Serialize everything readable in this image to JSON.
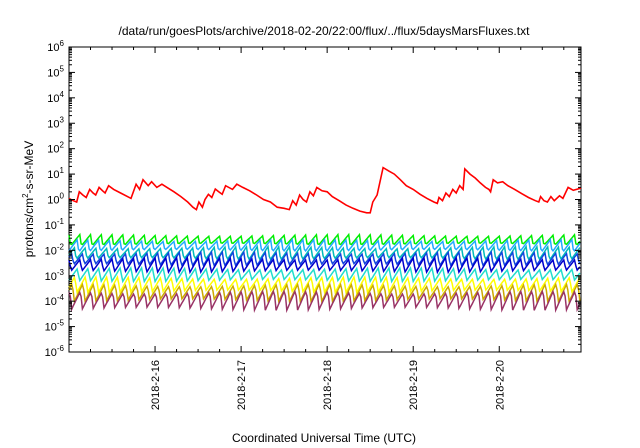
{
  "chart_data": {
    "type": "line",
    "title": "/data/run/goesPlots/archive/2018-02-20/22:00/flux/../flux/5daysMarsFluxes.txt",
    "xlabel": "Coordinated Universal Time (UTC)",
    "ylabel": {
      "prefix": "protons/cm",
      "exponent": "2",
      "suffix": "-s-sr-MeV"
    },
    "y_scale": "log",
    "ylim_exp": [
      -6,
      6
    ],
    "y_ticks": [
      {
        "base": "10",
        "exp": "6"
      },
      {
        "base": "10",
        "exp": "5"
      },
      {
        "base": "10",
        "exp": "4"
      },
      {
        "base": "10",
        "exp": "3"
      },
      {
        "base": "10",
        "exp": "2"
      },
      {
        "base": "10",
        "exp": "1"
      },
      {
        "base": "10",
        "exp": "0"
      },
      {
        "base": "10",
        "exp": "-1"
      },
      {
        "base": "10",
        "exp": "-2"
      },
      {
        "base": "10",
        "exp": "-3"
      },
      {
        "base": "10",
        "exp": "-4"
      },
      {
        "base": "10",
        "exp": "-5"
      },
      {
        "base": "10",
        "exp": "-6"
      }
    ],
    "x_domain_days": [
      15.0,
      20.95
    ],
    "x_ticks": [
      {
        "label": "2018-2-16",
        "day": 16
      },
      {
        "label": "2018-2-17",
        "day": 17
      },
      {
        "label": "2018-2-18",
        "day": 18
      },
      {
        "label": "2018-2-19",
        "day": 19
      },
      {
        "label": "2018-2-20",
        "day": 20
      }
    ],
    "grid": false,
    "series": [
      {
        "color": "#ff0000",
        "points": [
          [
            15.0,
            1.1
          ],
          [
            15.05,
            0.9
          ],
          [
            15.09,
            0.8
          ],
          [
            15.12,
            2.0
          ],
          [
            15.16,
            1.5
          ],
          [
            15.2,
            1.2
          ],
          [
            15.24,
            2.5
          ],
          [
            15.28,
            1.8
          ],
          [
            15.31,
            1.5
          ],
          [
            15.35,
            3.0
          ],
          [
            15.39,
            2.2
          ],
          [
            15.42,
            1.8
          ],
          [
            15.46,
            3.5
          ],
          [
            15.52,
            2.5
          ],
          [
            15.6,
            1.8
          ],
          [
            15.68,
            1.3
          ],
          [
            15.72,
            1.1
          ],
          [
            15.78,
            4.0
          ],
          [
            15.82,
            2.5
          ],
          [
            15.86,
            6.0
          ],
          [
            15.92,
            3.5
          ],
          [
            15.96,
            5.0
          ],
          [
            16.02,
            3.0
          ],
          [
            16.08,
            4.0
          ],
          [
            16.15,
            2.8
          ],
          [
            16.22,
            2.0
          ],
          [
            16.3,
            1.3
          ],
          [
            16.38,
            0.8
          ],
          [
            16.44,
            0.5
          ],
          [
            16.48,
            0.4
          ],
          [
            16.51,
            0.8
          ],
          [
            16.55,
            0.5
          ],
          [
            16.58,
            1.0
          ],
          [
            16.62,
            1.6
          ],
          [
            16.66,
            1.2
          ],
          [
            16.7,
            2.6
          ],
          [
            16.74,
            2.0
          ],
          [
            16.78,
            1.6
          ],
          [
            16.82,
            3.5
          ],
          [
            16.9,
            2.5
          ],
          [
            16.95,
            4.0
          ],
          [
            17.02,
            3.0
          ],
          [
            17.1,
            2.2
          ],
          [
            17.18,
            1.5
          ],
          [
            17.26,
            1.0
          ],
          [
            17.34,
            0.8
          ],
          [
            17.42,
            0.5
          ],
          [
            17.5,
            0.45
          ],
          [
            17.56,
            0.4
          ],
          [
            17.6,
            0.9
          ],
          [
            17.64,
            0.6
          ],
          [
            17.68,
            1.5
          ],
          [
            17.72,
            1.0
          ],
          [
            17.76,
            0.8
          ],
          [
            17.8,
            2.0
          ],
          [
            17.84,
            1.4
          ],
          [
            17.88,
            3.0
          ],
          [
            17.94,
            2.2
          ],
          [
            18.0,
            2.0
          ],
          [
            18.06,
            1.3
          ],
          [
            18.14,
            0.9
          ],
          [
            18.22,
            0.6
          ],
          [
            18.3,
            0.45
          ],
          [
            18.38,
            0.35
          ],
          [
            18.46,
            0.3
          ],
          [
            18.5,
            0.3
          ],
          [
            18.53,
            0.8
          ],
          [
            18.58,
            1.5
          ],
          [
            18.65,
            18.0
          ],
          [
            18.72,
            13.0
          ],
          [
            18.78,
            10.0
          ],
          [
            18.85,
            6.0
          ],
          [
            18.92,
            3.5
          ],
          [
            19.0,
            2.5
          ],
          [
            19.08,
            1.6
          ],
          [
            19.16,
            1.1
          ],
          [
            19.24,
            0.8
          ],
          [
            19.28,
            0.7
          ],
          [
            19.3,
            1.2
          ],
          [
            19.34,
            0.9
          ],
          [
            19.38,
            1.8
          ],
          [
            19.42,
            1.3
          ],
          [
            19.46,
            2.5
          ],
          [
            19.5,
            1.8
          ],
          [
            19.54,
            3.5
          ],
          [
            19.58,
            2.5
          ],
          [
            19.6,
            16.0
          ],
          [
            19.66,
            10.0
          ],
          [
            19.72,
            7.0
          ],
          [
            19.78,
            4.5
          ],
          [
            19.84,
            3.0
          ],
          [
            19.88,
            2.5
          ],
          [
            19.9,
            2.0
          ],
          [
            19.93,
            6.0
          ],
          [
            19.98,
            4.5
          ],
          [
            20.04,
            5.0
          ],
          [
            20.1,
            3.5
          ],
          [
            20.18,
            2.5
          ],
          [
            20.26,
            1.7
          ],
          [
            20.34,
            1.2
          ],
          [
            20.42,
            0.9
          ],
          [
            20.46,
            0.8
          ],
          [
            20.48,
            1.3
          ],
          [
            20.52,
            0.9
          ],
          [
            20.56,
            0.8
          ],
          [
            20.6,
            1.3
          ],
          [
            20.64,
            0.9
          ],
          [
            20.7,
            1.4
          ],
          [
            20.74,
            1.1
          ],
          [
            20.8,
            3.0
          ],
          [
            20.86,
            2.3
          ],
          [
            20.95,
            2.8
          ]
        ]
      },
      {
        "color": "#00ee00",
        "wave": {
          "mid": 0.025,
          "amp": 0.22,
          "phase": 0.0
        }
      },
      {
        "color": "#22aaff",
        "wave": {
          "mid": 0.015,
          "amp": 0.25,
          "phase": 0.03
        }
      },
      {
        "color": "#00bbbb",
        "wave": {
          "mid": 0.0075,
          "amp": 0.28,
          "phase": 0.06
        }
      },
      {
        "color": "#1144dd",
        "wave": {
          "mid": 0.0045,
          "amp": 0.3,
          "phase": 0.09
        }
      },
      {
        "color": "#0000cc",
        "wave": {
          "mid": 0.0026,
          "amp": 0.32,
          "phase": 0.12
        }
      },
      {
        "color": "#22ddcc",
        "wave": {
          "mid": 0.0011,
          "amp": 0.3,
          "phase": 0.15
        }
      },
      {
        "color": "#ffff00",
        "wave": {
          "mid": 0.00045,
          "amp": 0.34,
          "phase": 0.18
        }
      },
      {
        "color": "#ccaa00",
        "wave": {
          "mid": 0.00022,
          "amp": 0.38,
          "phase": 0.21
        }
      },
      {
        "color": "#993366",
        "wave": {
          "mid": 0.00011,
          "amp": 0.42,
          "phase": 0.24
        }
      }
    ]
  }
}
